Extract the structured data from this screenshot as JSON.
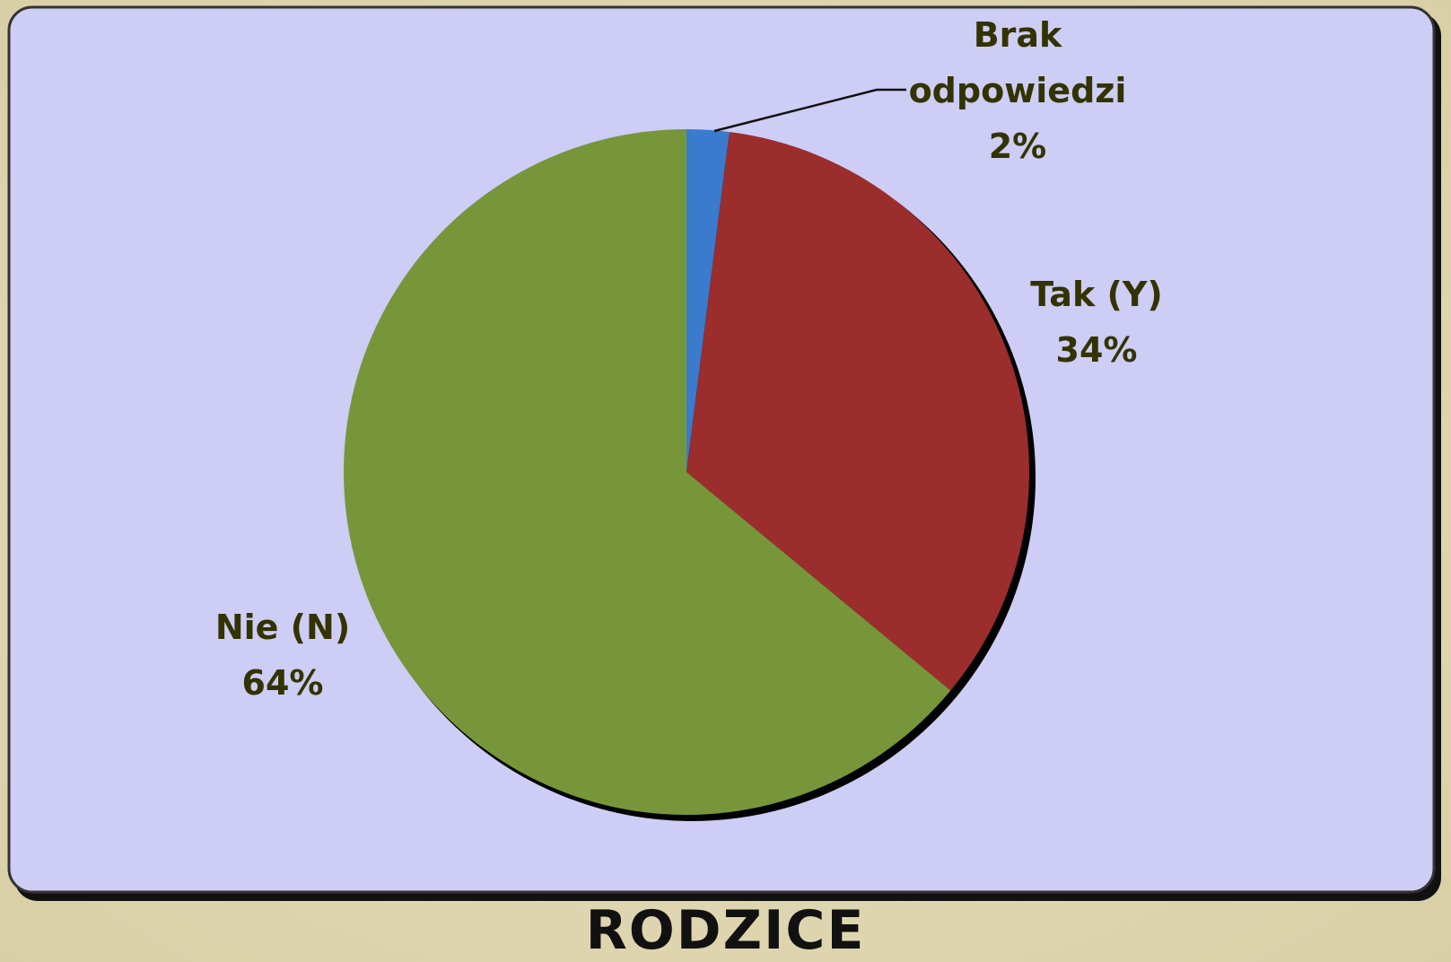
{
  "chart_data": {
    "type": "pie",
    "title": "RODZICE",
    "categories": [
      "Brak odpowiedzi",
      "Tak (Y)",
      "Nie (N)"
    ],
    "values": [
      2,
      34,
      64
    ],
    "value_labels": [
      "2%",
      "34%",
      "64%"
    ],
    "colors": [
      "#3a7bcd",
      "#9b2d2d",
      "#77963a"
    ]
  }
}
